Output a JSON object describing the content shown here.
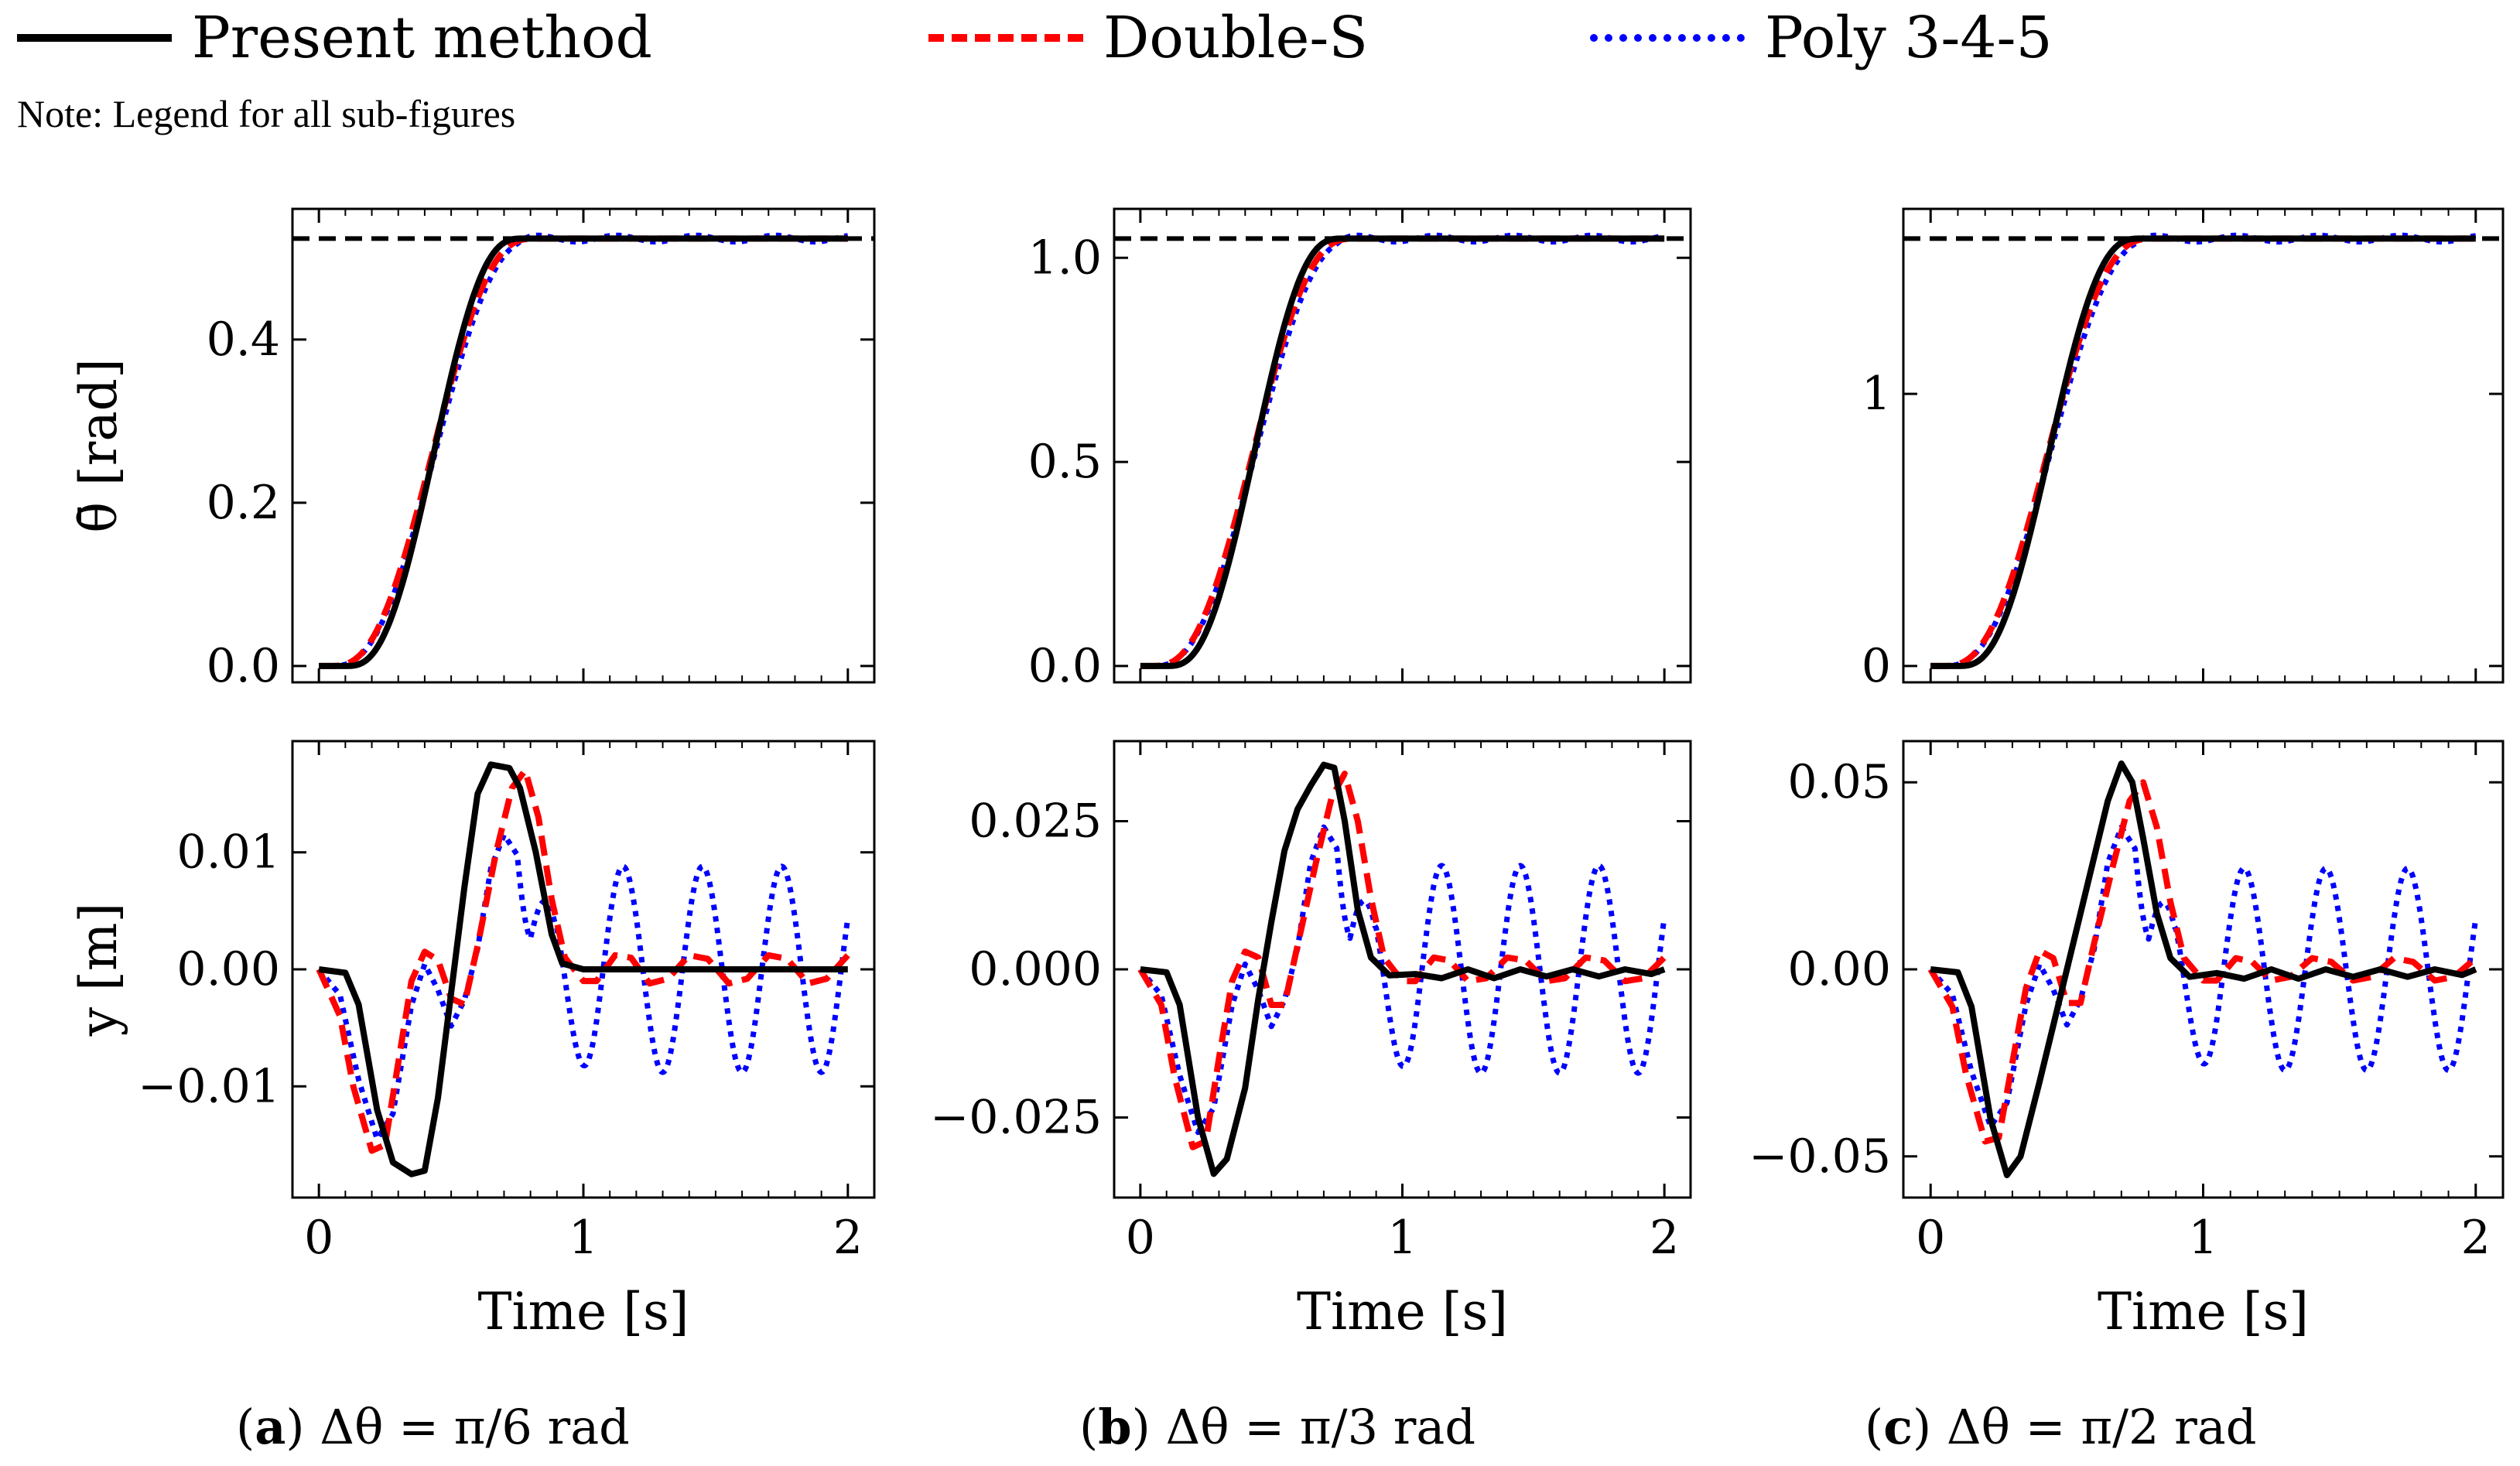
{
  "legend": {
    "items": [
      {
        "label": "Present method",
        "color": "#000000",
        "style": "solid"
      },
      {
        "label": "Double-S",
        "color": "#ff0000",
        "style": "dashed"
      },
      {
        "label": "Poly 3-4-5",
        "color": "#0000ff",
        "style": "dotted"
      }
    ]
  },
  "note": "Note: Legend for all sub-figures",
  "captions": [
    {
      "letter": "a",
      "text": "Δθ = π/6 rad"
    },
    {
      "letter": "b",
      "text": "Δθ = π/3 rad"
    },
    {
      "letter": "c",
      "text": "Δθ = π/2 rad"
    }
  ],
  "chart_data": [
    {
      "type": "line",
      "panel": "a-top",
      "ylabel": "θ̄ [rad]",
      "xlim": [
        -0.1,
        2.1
      ],
      "ylim": [
        -0.02,
        0.56
      ],
      "xticks": [
        0,
        1,
        2
      ],
      "yticks": [
        0.0,
        0.2,
        0.4
      ],
      "yticklabels": [
        "0.0",
        "0.2",
        "0.4"
      ],
      "target": 0.5236,
      "series": [
        {
          "name": "Present method",
          "kind": "theta_pm",
          "amp": 0.5236
        },
        {
          "name": "Double-S",
          "kind": "theta_ds",
          "amp": 0.5236
        },
        {
          "name": "Poly 3-4-5",
          "kind": "theta_poly",
          "amp": 0.5236,
          "ripple": 0.004
        }
      ]
    },
    {
      "type": "line",
      "panel": "a-bottom",
      "ylabel": "y [m]",
      "xlabel": "Time [s]",
      "xlim": [
        -0.1,
        2.1
      ],
      "ylim": [
        -0.0195,
        0.0195
      ],
      "xticks": [
        0,
        1,
        2
      ],
      "xticklabels": [
        "0",
        "1",
        "2"
      ],
      "yticks": [
        -0.01,
        0.0,
        0.01
      ],
      "yticklabels": [
        "−0.01",
        "0.00",
        "0.01"
      ],
      "series": [
        {
          "name": "Present method",
          "points": [
            [
              0,
              0
            ],
            [
              0.1,
              -0.0003
            ],
            [
              0.15,
              -0.003
            ],
            [
              0.22,
              -0.012
            ],
            [
              0.28,
              -0.0165
            ],
            [
              0.35,
              -0.0175
            ],
            [
              0.4,
              -0.0172
            ],
            [
              0.45,
              -0.011
            ],
            [
              0.5,
              -0.002
            ],
            [
              0.55,
              0.007
            ],
            [
              0.6,
              0.015
            ],
            [
              0.65,
              0.0175
            ],
            [
              0.72,
              0.0172
            ],
            [
              0.76,
              0.0155
            ],
            [
              0.82,
              0.01
            ],
            [
              0.88,
              0.003
            ],
            [
              0.92,
              0.0005
            ],
            [
              1.0,
              0
            ],
            [
              2.0,
              0
            ]
          ]
        },
        {
          "name": "Double-S",
          "points": [
            [
              0,
              0
            ],
            [
              0.08,
              -0.004
            ],
            [
              0.13,
              -0.01
            ],
            [
              0.2,
              -0.0155
            ],
            [
              0.25,
              -0.015
            ],
            [
              0.3,
              -0.008
            ],
            [
              0.35,
              -0.001
            ],
            [
              0.4,
              0.0015
            ],
            [
              0.45,
              0.0008
            ],
            [
              0.5,
              -0.0025
            ],
            [
              0.55,
              -0.003
            ],
            [
              0.6,
              0.002
            ],
            [
              0.67,
              0.01
            ],
            [
              0.73,
              0.0155
            ],
            [
              0.78,
              0.017
            ],
            [
              0.83,
              0.013
            ],
            [
              0.88,
              0.006
            ],
            [
              0.93,
              0.001
            ],
            [
              1.0,
              -0.001
            ],
            [
              1.05,
              -0.001
            ],
            [
              1.12,
              0.0012
            ],
            [
              1.18,
              0.001
            ],
            [
              1.25,
              -0.0012
            ],
            [
              1.32,
              -0.0008
            ],
            [
              1.4,
              0.0012
            ],
            [
              1.47,
              0.0009
            ],
            [
              1.55,
              -0.0012
            ],
            [
              1.62,
              -0.0008
            ],
            [
              1.7,
              0.0012
            ],
            [
              1.77,
              0.0009
            ],
            [
              1.85,
              -0.0012
            ],
            [
              1.92,
              -0.0008
            ],
            [
              2.0,
              0.0012
            ]
          ]
        },
        {
          "name": "Poly 3-4-5",
          "kind": "y_poly",
          "amp": 0.0088,
          "peak": 0.0115,
          "trough": -0.0145
        }
      ]
    },
    {
      "type": "line",
      "panel": "b-top",
      "xlim": [
        -0.1,
        2.1
      ],
      "ylim": [
        -0.04,
        1.12
      ],
      "xticks": [
        0,
        1,
        2
      ],
      "yticks": [
        0.0,
        0.5,
        1.0
      ],
      "yticklabels": [
        "0.0",
        "0.5",
        "1.0"
      ],
      "target": 1.0472,
      "series": [
        {
          "name": "Present method",
          "kind": "theta_pm",
          "amp": 1.0472
        },
        {
          "name": "Double-S",
          "kind": "theta_ds",
          "amp": 1.0472
        },
        {
          "name": "Poly 3-4-5",
          "kind": "theta_poly",
          "amp": 1.0472,
          "ripple": 0.008
        }
      ]
    },
    {
      "type": "line",
      "panel": "b-bottom",
      "xlabel": "Time [s]",
      "xlim": [
        -0.1,
        2.1
      ],
      "ylim": [
        -0.0385,
        0.0385
      ],
      "xticks": [
        0,
        1,
        2
      ],
      "xticklabels": [
        "0",
        "1",
        "2"
      ],
      "yticks": [
        -0.025,
        0.0,
        0.025
      ],
      "yticklabels": [
        "−0.025",
        "0.000",
        "0.025"
      ],
      "series": [
        {
          "name": "Present method",
          "points": [
            [
              0,
              0
            ],
            [
              0.1,
              -0.0005
            ],
            [
              0.15,
              -0.006
            ],
            [
              0.22,
              -0.025
            ],
            [
              0.28,
              -0.0345
            ],
            [
              0.33,
              -0.032
            ],
            [
              0.4,
              -0.02
            ],
            [
              0.45,
              -0.005
            ],
            [
              0.5,
              0.008
            ],
            [
              0.55,
              0.02
            ],
            [
              0.6,
              0.027
            ],
            [
              0.65,
              0.031
            ],
            [
              0.7,
              0.0345
            ],
            [
              0.74,
              0.034
            ],
            [
              0.78,
              0.025
            ],
            [
              0.83,
              0.01
            ],
            [
              0.88,
              0.002
            ],
            [
              0.95,
              -0.001
            ],
            [
              1.05,
              -0.0008
            ],
            [
              1.15,
              -0.0015
            ],
            [
              1.25,
              0
            ],
            [
              1.35,
              -0.0015
            ],
            [
              1.45,
              0
            ],
            [
              1.55,
              -0.0012
            ],
            [
              1.65,
              0
            ],
            [
              1.75,
              -0.0012
            ],
            [
              1.85,
              0
            ],
            [
              1.95,
              -0.0008
            ],
            [
              2.0,
              0
            ]
          ]
        },
        {
          "name": "Double-S",
          "points": [
            [
              0,
              0
            ],
            [
              0.08,
              -0.006
            ],
            [
              0.13,
              -0.018
            ],
            [
              0.2,
              -0.03
            ],
            [
              0.25,
              -0.029
            ],
            [
              0.3,
              -0.015
            ],
            [
              0.35,
              -0.002
            ],
            [
              0.4,
              0.003
            ],
            [
              0.45,
              0.002
            ],
            [
              0.5,
              -0.006
            ],
            [
              0.55,
              -0.006
            ],
            [
              0.6,
              0.004
            ],
            [
              0.67,
              0.018
            ],
            [
              0.73,
              0.029
            ],
            [
              0.78,
              0.033
            ],
            [
              0.83,
              0.025
            ],
            [
              0.88,
              0.012
            ],
            [
              0.93,
              0.002
            ],
            [
              1.0,
              -0.002
            ],
            [
              1.05,
              -0.002
            ],
            [
              1.12,
              0.002
            ],
            [
              1.18,
              0.0015
            ],
            [
              1.25,
              -0.002
            ],
            [
              1.32,
              -0.0015
            ],
            [
              1.4,
              0.002
            ],
            [
              1.47,
              0.0015
            ],
            [
              1.55,
              -0.002
            ],
            [
              1.62,
              -0.0015
            ],
            [
              1.7,
              0.002
            ],
            [
              1.77,
              0.0015
            ],
            [
              1.85,
              -0.002
            ],
            [
              1.92,
              -0.0015
            ],
            [
              2.0,
              0.002
            ]
          ]
        },
        {
          "name": "Poly 3-4-5",
          "kind": "y_poly",
          "amp": 0.0175,
          "peak": 0.024,
          "trough": -0.0275
        }
      ]
    },
    {
      "type": "line",
      "panel": "c-top",
      "xlim": [
        -0.1,
        2.1
      ],
      "ylim": [
        -0.06,
        1.68
      ],
      "xticks": [
        0,
        1,
        2
      ],
      "yticks": [
        0,
        1
      ],
      "yticklabels": [
        "0",
        "1"
      ],
      "target": 1.5708,
      "series": [
        {
          "name": "Present method",
          "kind": "theta_pm",
          "amp": 1.5708
        },
        {
          "name": "Double-S",
          "kind": "theta_ds",
          "amp": 1.5708
        },
        {
          "name": "Poly 3-4-5",
          "kind": "theta_poly",
          "amp": 1.5708,
          "ripple": 0.012
        }
      ]
    },
    {
      "type": "line",
      "panel": "c-bottom",
      "xlabel": "Time [s]",
      "xlim": [
        -0.1,
        2.1
      ],
      "ylim": [
        -0.061,
        0.061
      ],
      "xticks": [
        0,
        1,
        2
      ],
      "xticklabels": [
        "0",
        "1",
        "2"
      ],
      "yticks": [
        -0.05,
        0.0,
        0.05
      ],
      "yticklabels": [
        "−0.05",
        "0.00",
        "0.05"
      ],
      "series": [
        {
          "name": "Present method",
          "points": [
            [
              0,
              0
            ],
            [
              0.1,
              -0.0008
            ],
            [
              0.15,
              -0.01
            ],
            [
              0.22,
              -0.04
            ],
            [
              0.28,
              -0.055
            ],
            [
              0.33,
              -0.05
            ],
            [
              0.4,
              -0.03
            ],
            [
              0.45,
              -0.015
            ],
            [
              0.5,
              0
            ],
            [
              0.55,
              0.015
            ],
            [
              0.6,
              0.03
            ],
            [
              0.65,
              0.045
            ],
            [
              0.7,
              0.055
            ],
            [
              0.74,
              0.05
            ],
            [
              0.78,
              0.035
            ],
            [
              0.83,
              0.015
            ],
            [
              0.88,
              0.003
            ],
            [
              0.95,
              -0.002
            ],
            [
              1.05,
              -0.001
            ],
            [
              1.15,
              -0.0025
            ],
            [
              1.25,
              0
            ],
            [
              1.35,
              -0.0025
            ],
            [
              1.45,
              0
            ],
            [
              1.55,
              -0.002
            ],
            [
              1.65,
              0
            ],
            [
              1.75,
              -0.002
            ],
            [
              1.85,
              0
            ],
            [
              1.95,
              -0.0015
            ],
            [
              2.0,
              0
            ]
          ]
        },
        {
          "name": "Double-S",
          "points": [
            [
              0,
              0
            ],
            [
              0.08,
              -0.01
            ],
            [
              0.13,
              -0.028
            ],
            [
              0.2,
              -0.046
            ],
            [
              0.25,
              -0.045
            ],
            [
              0.3,
              -0.025
            ],
            [
              0.35,
              -0.005
            ],
            [
              0.4,
              0.005
            ],
            [
              0.45,
              0.003
            ],
            [
              0.5,
              -0.009
            ],
            [
              0.55,
              -0.009
            ],
            [
              0.6,
              0.007
            ],
            [
              0.67,
              0.028
            ],
            [
              0.73,
              0.045
            ],
            [
              0.78,
              0.05
            ],
            [
              0.83,
              0.038
            ],
            [
              0.88,
              0.018
            ],
            [
              0.93,
              0.003
            ],
            [
              1.0,
              -0.003
            ],
            [
              1.05,
              -0.003
            ],
            [
              1.12,
              0.003
            ],
            [
              1.18,
              0.002
            ],
            [
              1.25,
              -0.003
            ],
            [
              1.32,
              -0.002
            ],
            [
              1.4,
              0.003
            ],
            [
              1.47,
              0.002
            ],
            [
              1.55,
              -0.003
            ],
            [
              1.62,
              -0.002
            ],
            [
              1.7,
              0.003
            ],
            [
              1.77,
              0.002
            ],
            [
              1.85,
              -0.003
            ],
            [
              1.92,
              -0.002
            ],
            [
              2.0,
              0.003
            ]
          ]
        },
        {
          "name": "Poly 3-4-5",
          "kind": "y_poly",
          "amp": 0.027,
          "peak": 0.038,
          "trough": -0.042
        }
      ]
    }
  ]
}
